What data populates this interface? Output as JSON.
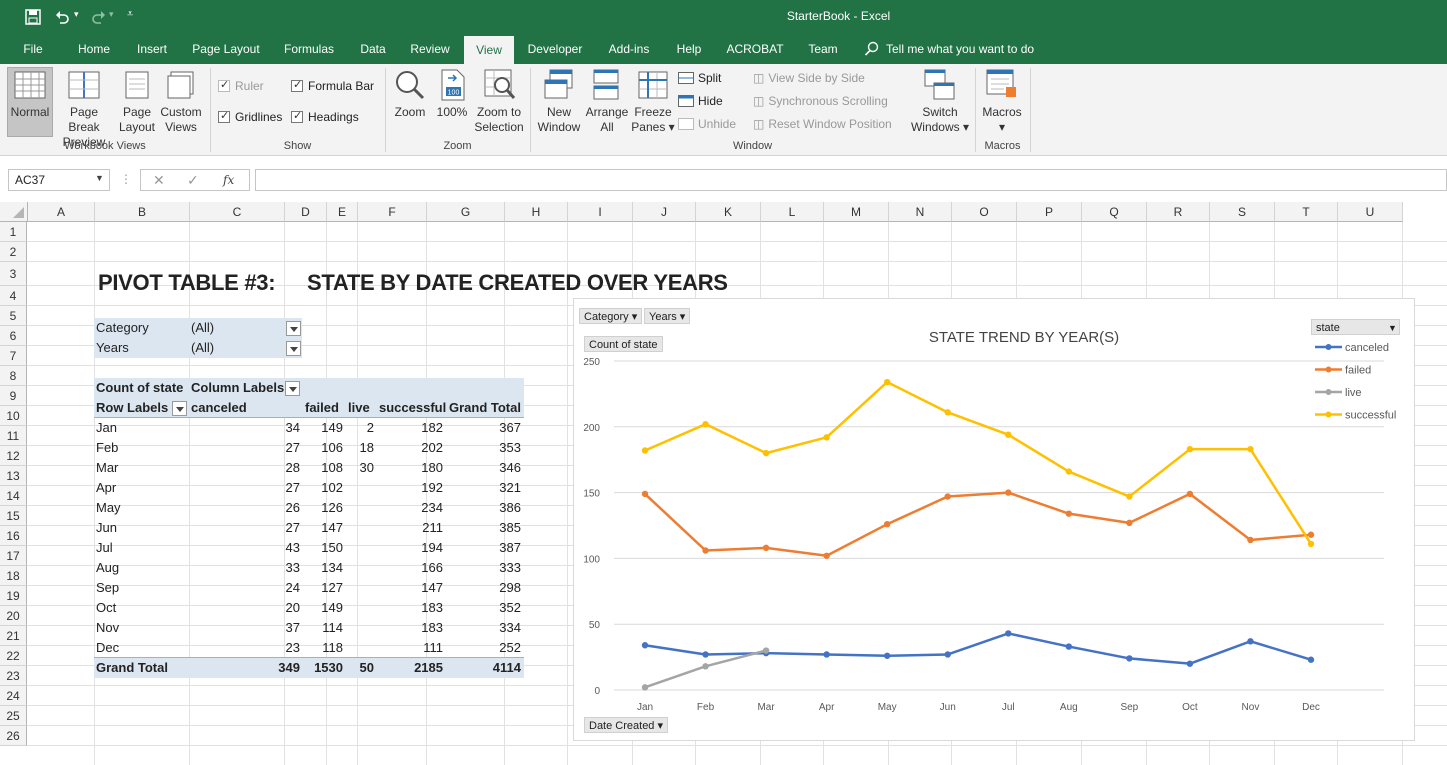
{
  "window": {
    "title": "StarterBook  -  Excel"
  },
  "tabs": [
    "File",
    "Home",
    "Insert",
    "Page Layout",
    "Formulas",
    "Data",
    "Review",
    "View",
    "Developer",
    "Add-ins",
    "Help",
    "ACROBAT",
    "Team"
  ],
  "active_tab": "View",
  "tell_me": "Tell me what you want to do",
  "ribbon": {
    "workbook_views": {
      "label": "Workbook Views",
      "normal": "Normal",
      "page_break": [
        "Page Break",
        "Preview"
      ],
      "page_layout": [
        "Page",
        "Layout"
      ],
      "custom_views": [
        "Custom",
        "Views"
      ]
    },
    "show": {
      "label": "Show",
      "ruler": "Ruler",
      "formula_bar": "Formula Bar",
      "gridlines": "Gridlines",
      "headings": "Headings"
    },
    "zoom": {
      "label": "Zoom",
      "zoom": "Zoom",
      "hundred": "100%",
      "zoom_to_selection": [
        "Zoom to",
        "Selection"
      ]
    },
    "window": {
      "label": "Window",
      "new_window": [
        "New",
        "Window"
      ],
      "arrange_all": [
        "Arrange",
        "All"
      ],
      "freeze_panes": [
        "Freeze",
        "Panes ▾"
      ],
      "split": "Split",
      "hide": "Hide",
      "unhide": "Unhide",
      "view_side": "View Side by Side",
      "sync_scroll": "Synchronous Scrolling",
      "reset_pos": "Reset Window Position",
      "switch_windows": [
        "Switch",
        "Windows ▾"
      ]
    },
    "macros": {
      "label": "Macros",
      "macros": "Macros",
      "arrow": "▾"
    }
  },
  "formula_bar": {
    "name_box": "AC37",
    "value": "",
    "fx": "fx"
  },
  "columns": [
    "A",
    "B",
    "C",
    "D",
    "E",
    "F",
    "G",
    "H",
    "I",
    "J",
    "K",
    "L",
    "M",
    "N",
    "O",
    "P",
    "Q",
    "R",
    "S",
    "T",
    "U"
  ],
  "rows": [
    "1",
    "2",
    "3",
    "4",
    "5",
    "6",
    "7",
    "8",
    "9",
    "10",
    "11",
    "12",
    "13",
    "14",
    "15",
    "16",
    "17",
    "18",
    "19",
    "20",
    "21",
    "22",
    "23",
    "24",
    "25",
    "26"
  ],
  "sheet": {
    "title_a": "PIVOT TABLE #3:",
    "title_b": "STATE BY DATE CREATED OVER YEARS",
    "filters": [
      {
        "label": "Category",
        "value": "(All)"
      },
      {
        "label": "Years",
        "value": "(All)"
      }
    ],
    "pivot_header": {
      "count_of_state": "Count of state",
      "column_labels": "Column Labels",
      "row_labels": "Row Labels",
      "cols": [
        "canceled",
        "failed",
        "live",
        "successful",
        "Grand Total"
      ]
    },
    "pivot_rows": [
      {
        "label": "Jan",
        "vals": [
          "34",
          "149",
          "2",
          "182",
          "367"
        ]
      },
      {
        "label": "Feb",
        "vals": [
          "27",
          "106",
          "18",
          "202",
          "353"
        ]
      },
      {
        "label": "Mar",
        "vals": [
          "28",
          "108",
          "30",
          "180",
          "346"
        ]
      },
      {
        "label": "Apr",
        "vals": [
          "27",
          "102",
          "",
          "192",
          "321"
        ]
      },
      {
        "label": "May",
        "vals": [
          "26",
          "126",
          "",
          "234",
          "386"
        ]
      },
      {
        "label": "Jun",
        "vals": [
          "27",
          "147",
          "",
          "211",
          "385"
        ]
      },
      {
        "label": "Jul",
        "vals": [
          "43",
          "150",
          "",
          "194",
          "387"
        ]
      },
      {
        "label": "Aug",
        "vals": [
          "33",
          "134",
          "",
          "166",
          "333"
        ]
      },
      {
        "label": "Sep",
        "vals": [
          "24",
          "127",
          "",
          "147",
          "298"
        ]
      },
      {
        "label": "Oct",
        "vals": [
          "20",
          "149",
          "",
          "183",
          "352"
        ]
      },
      {
        "label": "Nov",
        "vals": [
          "37",
          "114",
          "",
          "183",
          "334"
        ]
      },
      {
        "label": "Dec",
        "vals": [
          "23",
          "118",
          "",
          "111",
          "252"
        ]
      }
    ],
    "grand_total": {
      "label": "Grand Total",
      "vals": [
        "349",
        "1530",
        "50",
        "2185",
        "4114"
      ]
    }
  },
  "chart_data": {
    "type": "line",
    "title": "STATE TREND BY YEAR(S)",
    "ylabel": "",
    "xlabel": "",
    "ylim": [
      0,
      250
    ],
    "yticks": [
      0,
      50,
      100,
      150,
      200,
      250
    ],
    "grid": true,
    "legend_position": "top-right",
    "legend_title": "state",
    "categories": [
      "Jan",
      "Feb",
      "Mar",
      "Apr",
      "May",
      "Jun",
      "Jul",
      "Aug",
      "Sep",
      "Oct",
      "Nov",
      "Dec"
    ],
    "series": [
      {
        "name": "canceled",
        "color": "#4472c4",
        "values": [
          34,
          27,
          28,
          27,
          26,
          27,
          43,
          33,
          24,
          20,
          37,
          23
        ]
      },
      {
        "name": "failed",
        "color": "#ed7d31",
        "values": [
          149,
          106,
          108,
          102,
          126,
          147,
          150,
          134,
          127,
          149,
          114,
          118
        ]
      },
      {
        "name": "live",
        "color": "#a5a5a5",
        "values": [
          2,
          18,
          30,
          null,
          null,
          null,
          null,
          null,
          null,
          null,
          null,
          null
        ]
      },
      {
        "name": "successful",
        "color": "#ffc000",
        "values": [
          182,
          202,
          180,
          192,
          234,
          211,
          194,
          166,
          147,
          183,
          183,
          111
        ]
      }
    ],
    "field_buttons": {
      "category": "Category",
      "years": "Years",
      "values": "Count of state",
      "axis": "Date Created"
    }
  }
}
